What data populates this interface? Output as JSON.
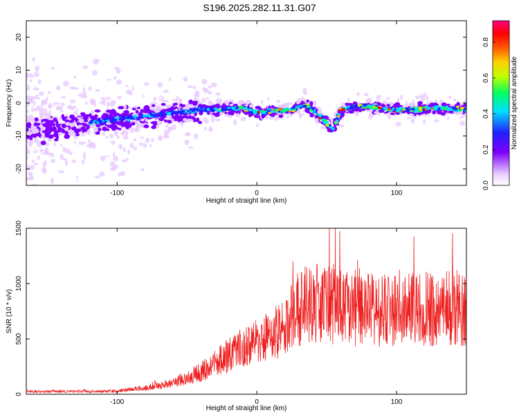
{
  "chart_data": [
    {
      "type": "heatmap",
      "title": "S196.2025.282.11.31.G07",
      "xlabel": "Height of straight line (km)",
      "ylabel": "Frequency (Hz)",
      "xlim": [
        -165,
        150
      ],
      "ylim": [
        -25,
        25
      ],
      "xticks": [
        -100,
        0,
        100
      ],
      "yticks": [
        -20,
        -10,
        0,
        10,
        20
      ],
      "colorbar": {
        "label": "Normalized spectral amplitude",
        "range": [
          0,
          0.92
        ],
        "ticks": [
          "0.0",
          "0.2",
          "0.4",
          "0.6",
          "0.8"
        ],
        "tick_values": [
          0,
          0.2,
          0.4,
          0.6,
          0.8
        ],
        "colors": [
          "#ffffff",
          "#e8ccff",
          "#7f00ff",
          "#2020ff",
          "#00e0ff",
          "#00ff60",
          "#c0ff00",
          "#ffd000",
          "#ff6000",
          "#ff0000",
          "#ff0080"
        ]
      },
      "ridge_center": {
        "x": [
          -165,
          -140,
          -120,
          -100,
          -80,
          -60,
          -40,
          -25,
          -10,
          0,
          10,
          25,
          35,
          45,
          55,
          60,
          70,
          80,
          95,
          110,
          130,
          150
        ],
        "y": [
          -8,
          -7,
          -6,
          -5,
          -4,
          -3,
          -2,
          -2,
          -1.5,
          -3,
          -2.5,
          -2,
          -0.5,
          -4,
          -8,
          -2,
          -1,
          -1,
          -2,
          -2,
          -1.5,
          -2
        ]
      }
    },
    {
      "type": "line",
      "xlabel": "Height of straight line (km)",
      "ylabel": "SNR (10 * v/v)",
      "xlim": [
        -165,
        150
      ],
      "ylim": [
        0,
        1500
      ],
      "xticks": [
        -100,
        0,
        100
      ],
      "yticks": [
        0,
        500,
        1000,
        1500
      ],
      "series": [
        {
          "name": "SNR",
          "color": "#ee2020",
          "envelope_x": [
            -165,
            -120,
            -100,
            -80,
            -60,
            -40,
            -30,
            -20,
            -10,
            0,
            10,
            20,
            30,
            40,
            50,
            60,
            70,
            80,
            90,
            100,
            110,
            120,
            130,
            140,
            150
          ],
          "envelope_mean": [
            25,
            25,
            30,
            60,
            100,
            200,
            280,
            350,
            420,
            480,
            530,
            600,
            780,
            830,
            830,
            800,
            780,
            760,
            750,
            760,
            760,
            770,
            760,
            780,
            800
          ]
        }
      ]
    }
  ]
}
